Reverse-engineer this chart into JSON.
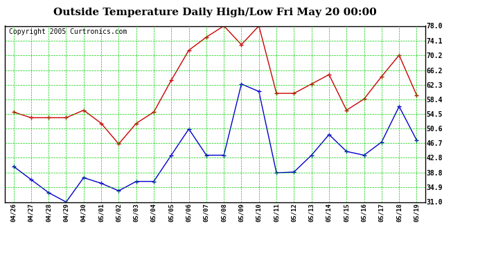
{
  "title": "Outside Temperature Daily High/Low Fri May 20 00:00",
  "copyright": "Copyright 2005 Curtronics.com",
  "x_labels": [
    "04/26",
    "04/27",
    "04/28",
    "04/29",
    "04/30",
    "05/01",
    "05/02",
    "05/03",
    "05/04",
    "05/05",
    "05/06",
    "05/07",
    "05/08",
    "05/09",
    "05/10",
    "05/11",
    "05/12",
    "05/13",
    "05/14",
    "05/15",
    "05/16",
    "05/17",
    "05/18",
    "05/19"
  ],
  "high_temps": [
    55.0,
    53.5,
    53.5,
    53.5,
    55.5,
    52.0,
    46.5,
    52.0,
    55.0,
    63.5,
    71.5,
    75.0,
    78.0,
    73.0,
    78.0,
    60.0,
    60.0,
    62.5,
    65.0,
    55.5,
    58.5,
    64.5,
    70.2,
    59.5
  ],
  "low_temps": [
    40.5,
    37.0,
    33.5,
    31.0,
    37.5,
    36.0,
    34.0,
    36.5,
    36.5,
    43.5,
    50.5,
    43.5,
    43.5,
    62.5,
    60.5,
    38.8,
    39.0,
    43.5,
    49.0,
    44.5,
    43.5,
    47.0,
    56.5,
    47.5
  ],
  "high_color": "#cc0000",
  "low_color": "#0000cc",
  "bg_color": "#ffffff",
  "grid_color": "#00cc00",
  "y_ticks": [
    31.0,
    34.9,
    38.8,
    42.8,
    46.7,
    50.6,
    54.5,
    58.4,
    62.3,
    66.2,
    70.2,
    74.1,
    78.0
  ],
  "ylim": [
    31.0,
    78.0
  ],
  "title_fontsize": 11,
  "copyright_fontsize": 7
}
